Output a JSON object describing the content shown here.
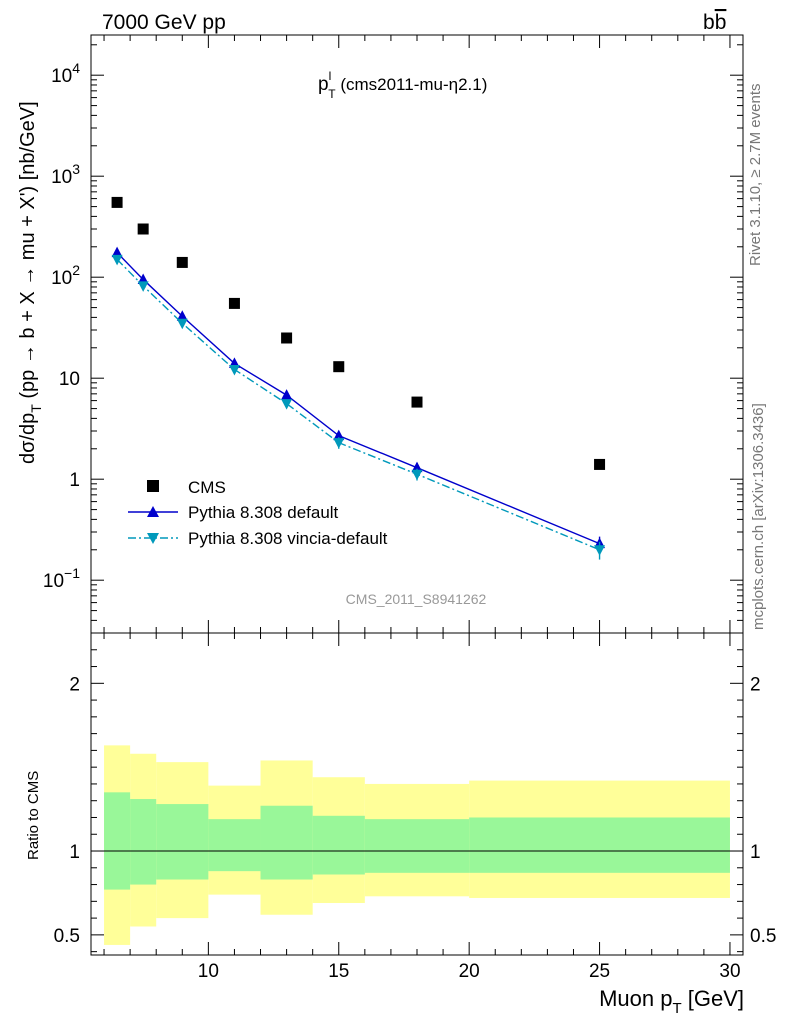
{
  "header": {
    "left": "7000 GeV pp",
    "right_main": "b",
    "right_bar": "b"
  },
  "side": {
    "rivet": "Rivet 3.1.10, ≥ 2.7M events",
    "mcplots": "mcplots.cern.ch [arXiv:1306.3436]"
  },
  "watermark": "CMS_2011_S8941262",
  "chart_data": [
    {
      "type": "scatter",
      "panel": "main",
      "title": {
        "main": "p",
        "sup": "l",
        "sub": "T",
        "suffix": " (cms2011-mu-η2.1)"
      },
      "ylabel": {
        "a": "dσ/dp",
        "sub": "T",
        "b": " (pp → b + X → mu + X') [nb/GeV]"
      },
      "yscale": "log",
      "ylim": [
        0.03,
        25000
      ],
      "xlim": [
        5.5,
        30.5
      ],
      "yticks": [
        {
          "v": 0.1,
          "base": "10",
          "exp": "−1"
        },
        {
          "v": 1,
          "label": "1"
        },
        {
          "v": 10,
          "label": "10"
        },
        {
          "v": 100,
          "base": "10",
          "exp": "2"
        },
        {
          "v": 1000,
          "base": "10",
          "exp": "3"
        },
        {
          "v": 10000,
          "base": "10",
          "exp": "4"
        }
      ],
      "legend_position": "bottom-left",
      "series": [
        {
          "name": "CMS",
          "color": "#000000",
          "marker": "square",
          "x": [
            6.5,
            7.5,
            9,
            11,
            13,
            15,
            18,
            25
          ],
          "y": [
            550,
            300,
            140,
            55,
            25,
            13,
            5.8,
            1.4
          ]
        },
        {
          "name": "Pythia 8.308 default",
          "color": "#0000cc",
          "marker": "triangle-up",
          "line": "solid",
          "x": [
            6.5,
            7.5,
            9,
            11,
            13,
            15,
            18,
            25
          ],
          "y": [
            175,
            95,
            41,
            14,
            6.8,
            2.7,
            1.3,
            0.23
          ],
          "yerr": [
            0,
            0,
            0,
            0,
            0,
            0.3,
            0.15,
            0.04
          ]
        },
        {
          "name": "Pythia 8.308 vincia-default",
          "color": "#0099bb",
          "marker": "triangle-down",
          "line": "dashdot",
          "x": [
            6.5,
            7.5,
            9,
            11,
            13,
            15,
            18,
            25
          ],
          "y": [
            150,
            82,
            35,
            12.2,
            5.6,
            2.3,
            1.12,
            0.2
          ],
          "yerr": [
            0,
            0,
            0,
            0,
            0,
            0.3,
            0.15,
            0.04
          ]
        }
      ]
    },
    {
      "type": "area",
      "panel": "ratio",
      "ylabel": "Ratio to CMS",
      "xlabel": {
        "a": "Muon p",
        "sub": "T",
        "b": " [GeV]"
      },
      "xlim": [
        5.5,
        30.5
      ],
      "ylim": [
        0.38,
        2.3
      ],
      "xticks": [
        10,
        15,
        20,
        25,
        30
      ],
      "yticks": [
        {
          "v": 0.5,
          "label": "0.5"
        },
        {
          "v": 1,
          "label": "1"
        },
        {
          "v": 2,
          "label": "2"
        }
      ],
      "bin_edges": [
        6,
        7,
        8,
        10,
        12,
        14,
        16,
        20,
        30
      ],
      "band_outer": {
        "color": "#ffff99",
        "lo": [
          0.44,
          0.55,
          0.6,
          0.74,
          0.62,
          0.69,
          0.73,
          0.72
        ],
        "hi": [
          1.63,
          1.58,
          1.53,
          1.39,
          1.54,
          1.44,
          1.4,
          1.42
        ]
      },
      "band_inner": {
        "color": "#99f799",
        "lo": [
          0.77,
          0.8,
          0.83,
          0.88,
          0.83,
          0.86,
          0.87,
          0.87
        ],
        "hi": [
          1.35,
          1.31,
          1.28,
          1.19,
          1.27,
          1.21,
          1.19,
          1.2
        ]
      },
      "reference": 1
    }
  ]
}
